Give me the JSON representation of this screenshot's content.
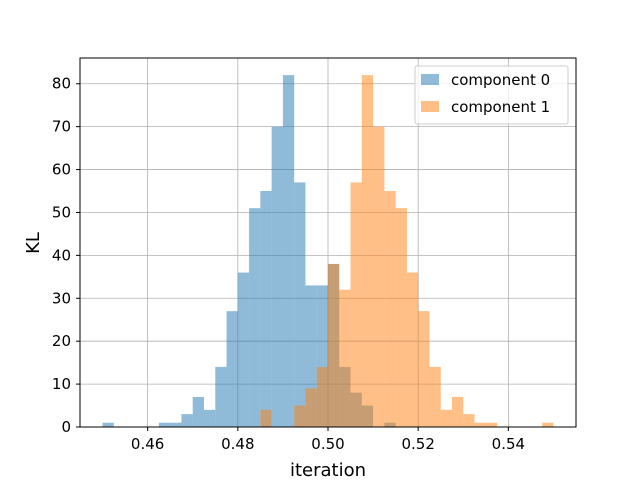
{
  "chart_data": {
    "type": "bar",
    "subtype": "histogram",
    "xlabel": "iteration",
    "ylabel": "KL",
    "xlim": [
      0.445,
      0.555
    ],
    "ylim": [
      0,
      86
    ],
    "bin_width": 0.0025,
    "xticks": [
      "0.46",
      "0.48",
      "0.50",
      "0.52",
      "0.54"
    ],
    "xtick_values": [
      0.46,
      0.48,
      0.5,
      0.52,
      0.54
    ],
    "yticks": [
      "0",
      "10",
      "20",
      "30",
      "40",
      "50",
      "60",
      "70",
      "80"
    ],
    "ytick_values": [
      0,
      10,
      20,
      30,
      40,
      50,
      60,
      70,
      80
    ],
    "grid": true,
    "legend_position": "top-right",
    "series": [
      {
        "name": "component 0",
        "color": "#1f77b4",
        "alpha": 0.5,
        "bins": [
          {
            "x0": 0.45,
            "x1": 0.4525,
            "count": 1
          },
          {
            "x0": 0.4625,
            "x1": 0.465,
            "count": 1
          },
          {
            "x0": 0.465,
            "x1": 0.4675,
            "count": 1
          },
          {
            "x0": 0.4675,
            "x1": 0.47,
            "count": 3
          },
          {
            "x0": 0.47,
            "x1": 0.4725,
            "count": 7
          },
          {
            "x0": 0.4725,
            "x1": 0.475,
            "count": 4
          },
          {
            "x0": 0.475,
            "x1": 0.4775,
            "count": 14
          },
          {
            "x0": 0.4775,
            "x1": 0.48,
            "count": 27
          },
          {
            "x0": 0.48,
            "x1": 0.4825,
            "count": 36
          },
          {
            "x0": 0.4825,
            "x1": 0.485,
            "count": 51
          },
          {
            "x0": 0.485,
            "x1": 0.4875,
            "count": 55
          },
          {
            "x0": 0.4875,
            "x1": 0.49,
            "count": 70
          },
          {
            "x0": 0.49,
            "x1": 0.4925,
            "count": 82
          },
          {
            "x0": 0.4925,
            "x1": 0.495,
            "count": 57
          },
          {
            "x0": 0.495,
            "x1": 0.4975,
            "count": 33
          },
          {
            "x0": 0.4975,
            "x1": 0.5,
            "count": 33
          },
          {
            "x0": 0.5,
            "x1": 0.5025,
            "count": 38
          },
          {
            "x0": 0.5025,
            "x1": 0.505,
            "count": 14
          },
          {
            "x0": 0.505,
            "x1": 0.5075,
            "count": 8
          },
          {
            "x0": 0.5075,
            "x1": 0.51,
            "count": 5
          },
          {
            "x0": 0.5125,
            "x1": 0.515,
            "count": 1
          }
        ]
      },
      {
        "name": "component 1",
        "color": "#ff7f0e",
        "alpha": 0.5,
        "bins": [
          {
            "x0": 0.485,
            "x1": 0.4875,
            "count": 4
          },
          {
            "x0": 0.4925,
            "x1": 0.495,
            "count": 5
          },
          {
            "x0": 0.495,
            "x1": 0.4975,
            "count": 9
          },
          {
            "x0": 0.4975,
            "x1": 0.5,
            "count": 14
          },
          {
            "x0": 0.5,
            "x1": 0.5025,
            "count": 38
          },
          {
            "x0": 0.5025,
            "x1": 0.505,
            "count": 32
          },
          {
            "x0": 0.505,
            "x1": 0.5075,
            "count": 57
          },
          {
            "x0": 0.5075,
            "x1": 0.51,
            "count": 82
          },
          {
            "x0": 0.51,
            "x1": 0.5125,
            "count": 70
          },
          {
            "x0": 0.5125,
            "x1": 0.515,
            "count": 55
          },
          {
            "x0": 0.515,
            "x1": 0.5175,
            "count": 51
          },
          {
            "x0": 0.5175,
            "x1": 0.52,
            "count": 36
          },
          {
            "x0": 0.52,
            "x1": 0.5225,
            "count": 27
          },
          {
            "x0": 0.5225,
            "x1": 0.525,
            "count": 14
          },
          {
            "x0": 0.525,
            "x1": 0.5275,
            "count": 4
          },
          {
            "x0": 0.5275,
            "x1": 0.53,
            "count": 7
          },
          {
            "x0": 0.53,
            "x1": 0.5325,
            "count": 3
          },
          {
            "x0": 0.5325,
            "x1": 0.535,
            "count": 1
          },
          {
            "x0": 0.535,
            "x1": 0.5375,
            "count": 1
          },
          {
            "x0": 0.5475,
            "x1": 0.55,
            "count": 1
          }
        ]
      }
    ]
  }
}
